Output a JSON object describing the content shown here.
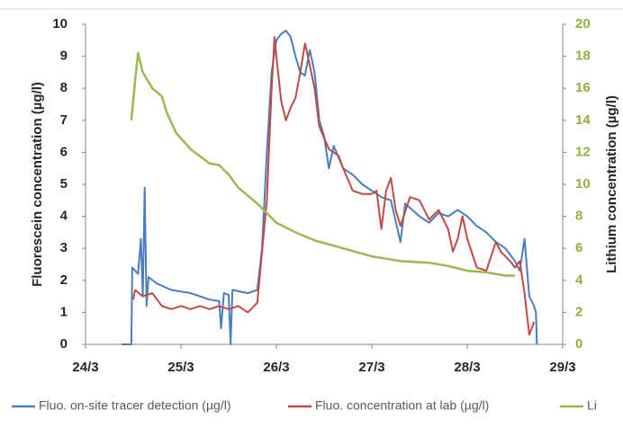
{
  "chart_data": {
    "type": "line",
    "y_label": "Fluorescein concentration  (µg/l)",
    "y2_label": "Lithium concentration  (µg/l)",
    "xlim": [
      24,
      29
    ],
    "xticks": [
      {
        "value": 24,
        "label": "24/3"
      },
      {
        "value": 25,
        "label": "25/3"
      },
      {
        "value": 26,
        "label": "26/3"
      },
      {
        "value": 27,
        "label": "27/3"
      },
      {
        "value": 28,
        "label": "28/3"
      },
      {
        "value": 29,
        "label": "29/3"
      }
    ],
    "ylim": [
      0,
      10
    ],
    "yticks": [
      0,
      1,
      2,
      3,
      4,
      5,
      6,
      7,
      8,
      9,
      10
    ],
    "y2lim": [
      0,
      20
    ],
    "y2ticks": [
      0,
      2,
      4,
      6,
      8,
      10,
      12,
      14,
      16,
      18,
      20
    ],
    "y2_color": "#8db33c",
    "grid": false,
    "legend": "bottom",
    "series": [
      {
        "name": "Fluo. on-site tracer detection (µg/l)",
        "color": "#4a7ebb",
        "x": [
          24.38,
          24.48,
          24.49,
          24.55,
          24.58,
          24.6,
          24.62,
          24.64,
          24.66,
          24.75,
          24.9,
          25.1,
          25.3,
          25.4,
          25.42,
          25.45,
          25.5,
          25.52,
          25.54,
          25.7,
          25.8,
          25.85,
          25.9,
          25.95,
          26.0,
          26.05,
          26.1,
          26.15,
          26.2,
          26.25,
          26.3,
          26.35,
          26.4,
          26.45,
          26.5,
          26.55,
          26.6,
          26.7,
          26.8,
          26.9,
          27.0,
          27.1,
          27.2,
          27.3,
          27.35,
          27.5,
          27.6,
          27.7,
          27.8,
          27.9,
          28.0,
          28.1,
          28.2,
          28.3,
          28.4,
          28.5,
          28.55,
          28.6,
          28.65,
          28.7,
          28.72,
          28.73
        ],
        "values": [
          0,
          0,
          2.4,
          2.2,
          3.3,
          1.5,
          4.9,
          1.2,
          2.1,
          1.9,
          1.7,
          1.6,
          1.4,
          1.35,
          0.5,
          1.6,
          1.55,
          0,
          1.7,
          1.6,
          1.7,
          3.0,
          6,
          8.5,
          9.5,
          9.7,
          9.8,
          9.6,
          9.0,
          8.5,
          8.4,
          9.2,
          8.5,
          7.0,
          6.5,
          5.5,
          6.2,
          5.5,
          5.3,
          5.0,
          4.8,
          4.6,
          4.5,
          3.2,
          4.4,
          4.0,
          3.8,
          4.1,
          4.0,
          4.2,
          4.0,
          3.7,
          3.5,
          3.2,
          3.0,
          2.6,
          2.3,
          3.3,
          1.5,
          1.2,
          1.0,
          0
        ]
      },
      {
        "name": "Fluo. concentration at lab (µg/l)",
        "color": "#be4b48",
        "x": [
          24.5,
          24.52,
          24.6,
          24.7,
          24.8,
          24.9,
          25.0,
          25.1,
          25.2,
          25.3,
          25.4,
          25.5,
          25.6,
          25.7,
          25.8,
          25.9,
          25.95,
          25.98,
          26.0,
          26.05,
          26.1,
          26.15,
          26.2,
          26.25,
          26.3,
          26.33,
          26.4,
          26.45,
          26.55,
          26.65,
          26.7,
          26.8,
          26.9,
          27.0,
          27.05,
          27.1,
          27.15,
          27.2,
          27.25,
          27.3,
          27.4,
          27.5,
          27.6,
          27.7,
          27.8,
          27.85,
          27.9,
          27.95,
          28.0,
          28.1,
          28.2,
          28.3,
          28.35,
          28.45,
          28.5,
          28.55,
          28.6,
          28.65,
          28.7
        ],
        "values": [
          1.4,
          1.7,
          1.5,
          1.6,
          1.2,
          1.1,
          1.2,
          1.1,
          1.2,
          1.1,
          1.2,
          1.1,
          1.2,
          1.0,
          1.3,
          4.5,
          8.0,
          9.6,
          9.0,
          7.6,
          7.0,
          7.4,
          7.7,
          8.5,
          9.4,
          9.0,
          8.0,
          6.8,
          6.1,
          5.9,
          5.5,
          4.8,
          4.7,
          4.7,
          4.8,
          3.6,
          4.8,
          5.2,
          4.2,
          3.7,
          4.6,
          4.5,
          3.9,
          4.2,
          3.6,
          2.9,
          3.3,
          4.0,
          3.3,
          2.4,
          2.3,
          3.2,
          2.9,
          2.6,
          2.4,
          2.6,
          1.6,
          0.3,
          0.7
        ]
      },
      {
        "name": "Li",
        "color": "#98b954",
        "axis": "y2",
        "x": [
          24.48,
          24.52,
          24.55,
          24.6,
          24.7,
          24.8,
          24.85,
          24.95,
          25.1,
          25.3,
          25.4,
          25.5,
          25.6,
          25.8,
          26.0,
          26.2,
          26.4,
          26.7,
          27.0,
          27.3,
          27.6,
          27.8,
          28.0,
          28.2,
          28.4,
          28.5
        ],
        "values": [
          14,
          16.5,
          18.2,
          17,
          16.0,
          15.5,
          14.5,
          13.2,
          12.2,
          11.3,
          11.2,
          10.6,
          9.8,
          8.8,
          7.6,
          7.0,
          6.5,
          6.0,
          5.5,
          5.2,
          5.1,
          4.9,
          4.6,
          4.5,
          4.3,
          4.3
        ]
      }
    ]
  }
}
